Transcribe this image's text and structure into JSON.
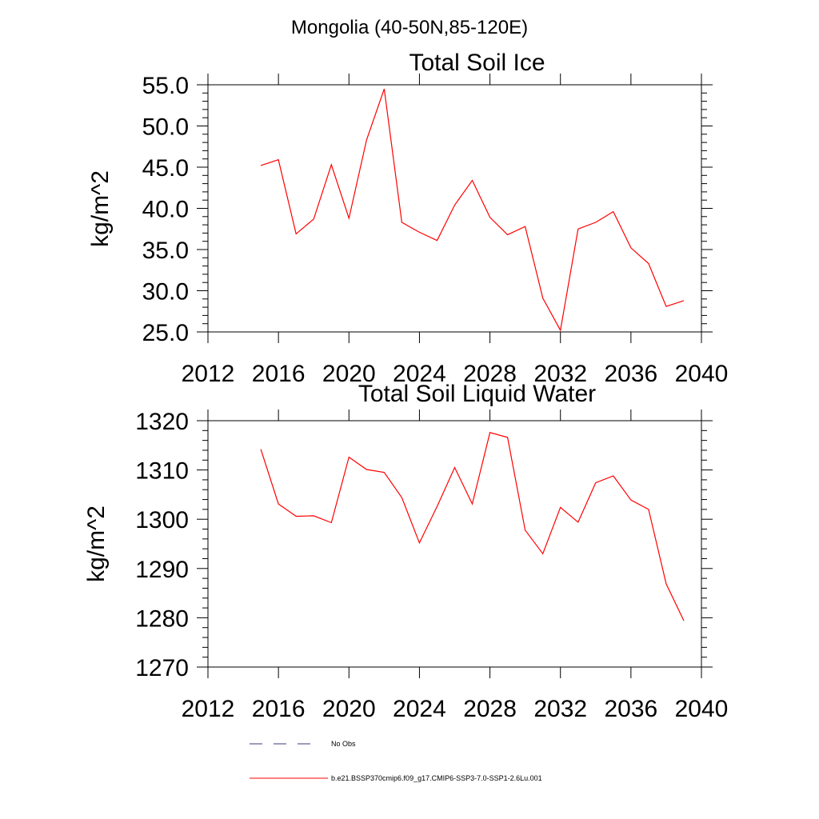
{
  "figure": {
    "suptitle": "Mongolia (40-50N,85-120E)"
  },
  "colors": {
    "series": "#ff0000",
    "obs": "#3a3a7a",
    "axis": "#000000"
  },
  "legend": {
    "placement": "bottom",
    "entries": [
      {
        "label": "No Obs",
        "style": "dashed"
      },
      {
        "label": "b.e21.BSSP370cmip6.f09_g17.CMIP6-SSP3-7.0-SSP1-2.6Lu.001",
        "style": "solid"
      }
    ]
  },
  "chart_data": [
    {
      "type": "line",
      "title": "Total Soil Ice",
      "xlabel": "",
      "ylabel": "kg/m^2",
      "xlim": [
        2012,
        2040
      ],
      "ylim": [
        25,
        55
      ],
      "x_ticks": [
        2012,
        2016,
        2020,
        2024,
        2028,
        2032,
        2036,
        2040
      ],
      "y_ticks": [
        "25.0",
        "30.0",
        "35.0",
        "40.0",
        "45.0",
        "50.0",
        "55.0"
      ],
      "y_tick_values": [
        25,
        30,
        35,
        40,
        45,
        50,
        55
      ],
      "grid": false,
      "series": [
        {
          "name": "b.e21.BSSP370cmip6.f09_g17.CMIP6-SSP3-7.0-SSP1-2.6Lu.001",
          "x": [
            2015,
            2016,
            2017,
            2018,
            2019,
            2020,
            2021,
            2022,
            2023,
            2024,
            2025,
            2026,
            2027,
            2028,
            2029,
            2030,
            2031,
            2032,
            2033,
            2034,
            2035,
            2036,
            2037,
            2038,
            2039
          ],
          "values": [
            45.2,
            45.9,
            36.9,
            38.7,
            45.3,
            38.8,
            48.3,
            54.5,
            38.3,
            37.1,
            36.1,
            40.4,
            43.4,
            38.9,
            36.8,
            37.8,
            29.1,
            25.2,
            37.5,
            38.3,
            39.6,
            35.2,
            33.3,
            28.1,
            28.8
          ]
        }
      ]
    },
    {
      "type": "line",
      "title": "Total Soil Liquid Water",
      "xlabel": "",
      "ylabel": "kg/m^2",
      "xlim": [
        2012,
        2040
      ],
      "ylim": [
        1270,
        1320
      ],
      "x_ticks": [
        2012,
        2016,
        2020,
        2024,
        2028,
        2032,
        2036,
        2040
      ],
      "y_ticks": [
        "1270",
        "1280",
        "1290",
        "1300",
        "1310",
        "1320"
      ],
      "y_tick_values": [
        1270,
        1280,
        1290,
        1300,
        1310,
        1320
      ],
      "grid": false,
      "series": [
        {
          "name": "b.e21.BSSP370cmip6.f09_g17.CMIP6-SSP3-7.0-SSP1-2.6Lu.001",
          "x": [
            2015,
            2016,
            2017,
            2018,
            2019,
            2020,
            2021,
            2022,
            2023,
            2024,
            2025,
            2026,
            2027,
            2028,
            2029,
            2030,
            2031,
            2032,
            2033,
            2034,
            2035,
            2036,
            2037,
            2038,
            2039
          ],
          "values": [
            1314.2,
            1303.1,
            1300.6,
            1300.7,
            1299.3,
            1312.6,
            1310.1,
            1309.5,
            1304.4,
            1295.2,
            1302.6,
            1310.5,
            1303.1,
            1317.6,
            1316.6,
            1297.8,
            1293.0,
            1302.4,
            1299.4,
            1307.4,
            1308.8,
            1303.9,
            1302.0,
            1286.9,
            1279.4
          ]
        }
      ]
    }
  ]
}
